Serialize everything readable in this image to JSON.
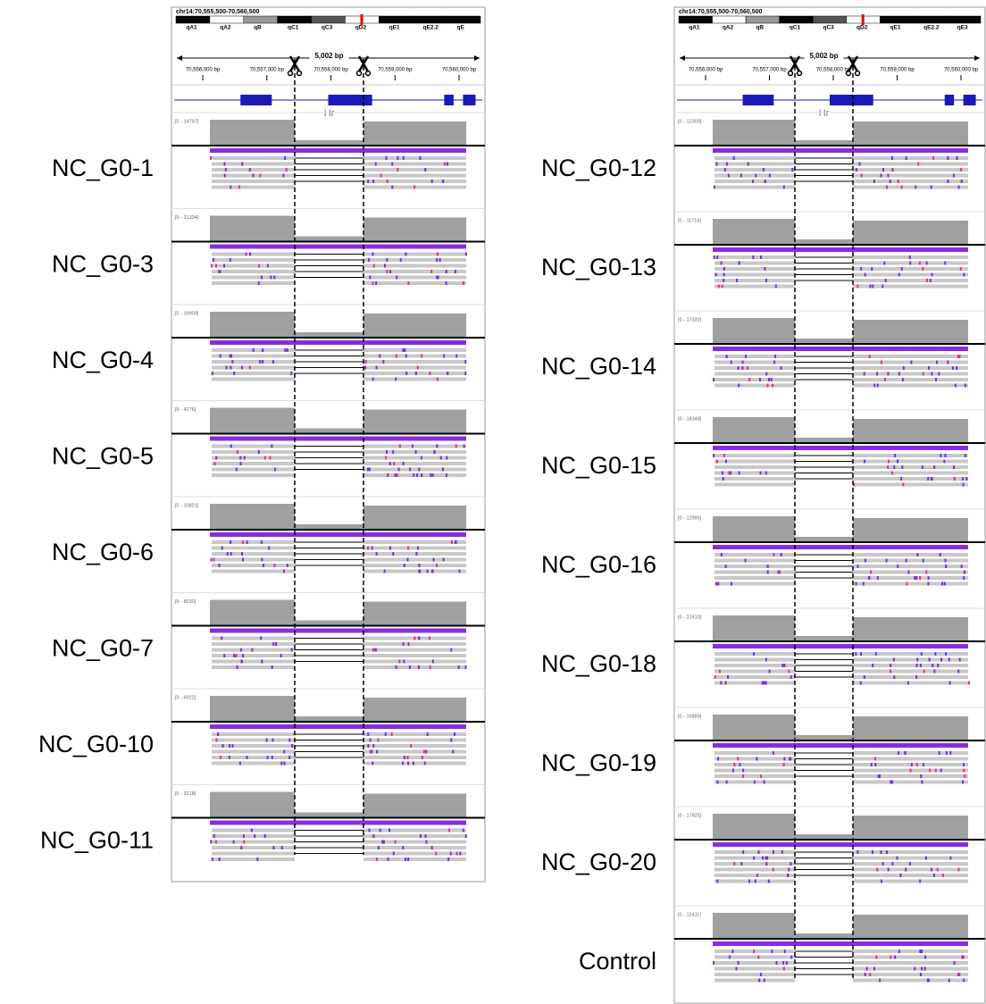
{
  "panels": [
    {
      "locus": "chr14:70,555,500-70,560,500",
      "bands": [
        "qA1",
        "qA2",
        "qB",
        "qC1",
        "qC3",
        "qD2",
        "qE1",
        "qE2.2",
        "qE"
      ],
      "span": "5,002 bp",
      "ruler_ticks": [
        "70,556,000 bp",
        "70,557,000 bp",
        "70,558,000 bp",
        "70,559,000 bp",
        "70,560,000 bp"
      ],
      "gene": "Hr",
      "samples": [
        {
          "label": "NC_G0-1",
          "range": "[0 - 14797]"
        },
        {
          "label": "NC_G0-3",
          "range": "[0 - 21334]"
        },
        {
          "label": "NC_G0-4",
          "range": "[0 - 16909]"
        },
        {
          "label": "NC_G0-5",
          "range": "[0 - 4276]"
        },
        {
          "label": "NC_G0-6",
          "range": "[0 - 10821]"
        },
        {
          "label": "NC_G0-7",
          "range": "[0 - 8530]"
        },
        {
          "label": "NC_G0-10",
          "range": "[0 - 6922]"
        },
        {
          "label": "NC_G0-11",
          "range": "[0 - 3218]"
        }
      ]
    },
    {
      "locus": "chr14:70,555,500-70,560,500",
      "bands": [
        "qA1",
        "qA2",
        "qB",
        "qC1",
        "qC3",
        "qD2",
        "qE1",
        "qE2.2",
        "qE3"
      ],
      "span": "5,002 bp",
      "ruler_ticks": [
        "70,556,000 bp",
        "70,557,000 bp",
        "70,558,000 bp",
        "70,559,000 bp",
        "70,560,000 bp"
      ],
      "gene": "Hr",
      "samples": [
        {
          "label": "NC_G0-12",
          "range": "[0 - 12309]"
        },
        {
          "label": "NC_G0-13",
          "range": "[0 - 11714]"
        },
        {
          "label": "NC_G0-14",
          "range": "[0 - 17332]"
        },
        {
          "label": "NC_G0-15",
          "range": "[0 - 18348]"
        },
        {
          "label": "NC_G0-16",
          "range": "[0 - 12995]"
        },
        {
          "label": "NC_G0-18",
          "range": "[0 - 22410]"
        },
        {
          "label": "NC_G0-19",
          "range": "[0 - 15889]"
        },
        {
          "label": "NC_G0-20",
          "range": "[0 - 17825]"
        },
        {
          "label": "Control",
          "range": "[0 - 12411]"
        }
      ]
    }
  ]
}
